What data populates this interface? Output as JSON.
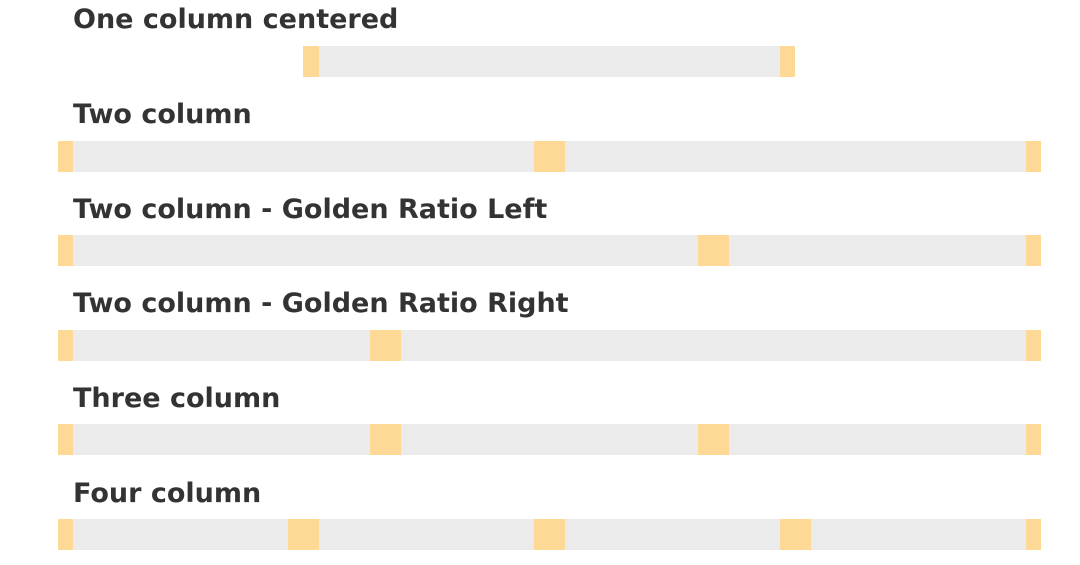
{
  "sections": [
    {
      "title": "One column centered"
    },
    {
      "title": "Two column"
    },
    {
      "title": "Two column - Golden Ratio Left"
    },
    {
      "title": "Two column - Golden Ratio Right"
    },
    {
      "title": "Three column"
    },
    {
      "title": "Four column"
    }
  ]
}
